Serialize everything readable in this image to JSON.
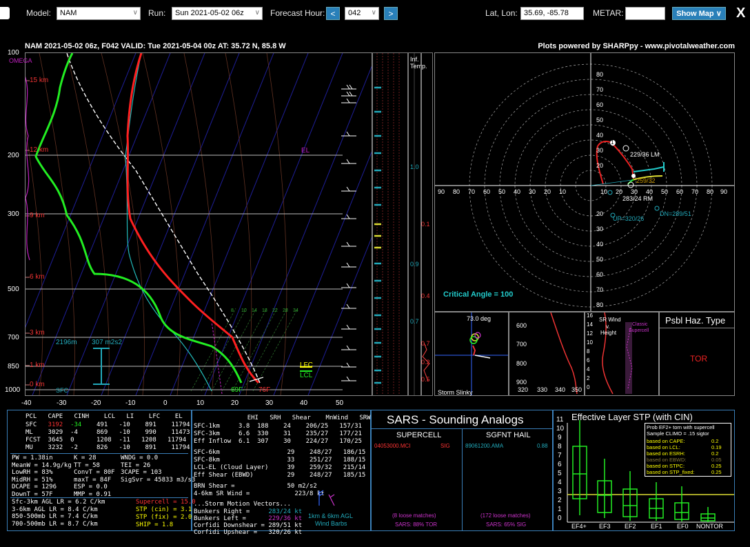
{
  "topbar": {
    "model_label": "Model:",
    "model_value": "NAM",
    "run_label": "Run:",
    "run_value": "Sun 2021-05-02 06z",
    "fhour_label": "Forecast Hour:",
    "fhour_value": "042",
    "prev": "<",
    "next": ">",
    "latlon_label": "Lat, Lon:",
    "latlon_value": "35.69, -85.78",
    "metar_label": "METAR:",
    "metar_value": "",
    "showmap": "Show Map ∨",
    "close": "X"
  },
  "header": {
    "title": "NAM 2021-05-02 06z, F042   VALID: Tue 2021-05-04 00z   AT: 35.72 N, 85.8 W",
    "credit": "Plots powered by SHARPpy - www.pivotalweather.com"
  },
  "skewt": {
    "pressure_ticks": [
      "100",
      "200",
      "300",
      "500",
      "700",
      "850",
      "1000"
    ],
    "temp_ticks": [
      "-40",
      "-30",
      "-20",
      "-10",
      "0",
      "10",
      "20",
      "30",
      "40",
      "50"
    ],
    "height_labels": [
      "15 km",
      "12 km",
      "9 km",
      "6 km",
      "3 km",
      "1 km",
      "0 km"
    ],
    "omega": "OMEGA",
    "el": "EL",
    "lfc": "LFC",
    "lcl": "LCL",
    "sfc": "SFC",
    "sfc_t": "76F",
    "sfc_td": "69F",
    "eff_inflow_depth": "2196m",
    "eff_inflow_srh": "307 m2s2",
    "mixing_ratio_labels": [
      "8",
      "10",
      "14",
      "18",
      "22",
      "28",
      "34"
    ]
  },
  "theta": {
    "title_a": "Inf.",
    "title_b": "Temp.",
    "ticks": [
      "1.0",
      "0.1",
      "0.9",
      "0.4",
      "0.7",
      "0.7",
      "0.2",
      "0.5"
    ]
  },
  "hodo": {
    "rings": [
      "10",
      "20",
      "30",
      "40",
      "50",
      "60",
      "70",
      "80"
    ],
    "xticks": [
      "90",
      "80",
      "70",
      "60",
      "50",
      "40",
      "30",
      "20",
      "10"
    ],
    "lm": "229/36 LM",
    "rm": "283/24 RM",
    "up": "UP=320/26",
    "dn": "DN=289/51",
    "mean": "259/32",
    "critical": "Critical Angle = 100",
    "mark1": "1"
  },
  "slinky": {
    "deg": "73.0 deg",
    "label": "Storm Slinky"
  },
  "small_profile": {
    "yticks": [
      "600",
      "700",
      "800",
      "900"
    ],
    "xticks": [
      "320",
      "330",
      "340",
      "350"
    ]
  },
  "srwind": {
    "label_a": "SR Wind",
    "label_b": "v.",
    "label_c": "Height",
    "classic_a": "Classic",
    "classic_b": "Supercell",
    "yticks": [
      "16",
      "14",
      "12",
      "10",
      "8",
      "6",
      "4",
      "2",
      "0"
    ]
  },
  "hazard": {
    "title": "Psbl Haz. Type",
    "value": "TOR"
  },
  "parcels": {
    "header": [
      "PCL",
      "CAPE",
      "CINH",
      "LCL",
      "LI",
      "LFC",
      "EL"
    ],
    "rows": [
      [
        "SFC",
        "3192",
        "-34",
        "491",
        "-10",
        "891",
        "11794"
      ],
      [
        "ML",
        "3029",
        "-4",
        "869",
        "-10",
        "990",
        "11473"
      ],
      [
        "FCST",
        "3645",
        "0",
        "1208",
        "-11",
        "1208",
        "11794"
      ],
      [
        "MU",
        "3232",
        "-2",
        "826",
        "-10",
        "891",
        "11794"
      ]
    ]
  },
  "indices": {
    "col1": [
      "PW = 1.38in",
      "MeanW = 14.9g/kg",
      "LowRH = 83%",
      "MidRH = 51%",
      "DCAPE = 1296",
      "DownT = 57F"
    ],
    "col2": [
      "K = 28",
      "TT = 58",
      "ConvT = 80F",
      "maxT = 84F",
      "ESP = 0.0",
      "MMP = 0.91"
    ],
    "col3": [
      "WNDG = 0.0",
      "TEI = 26",
      "3CAPE = 103",
      "",
      "",
      "SigSvr = 45833 m3/s3"
    ]
  },
  "lapse": [
    "Sfc-3km AGL LR = 6.2 C/km",
    "3-6km AGL LR = 8.4 C/km",
    "850-500mb LR = 7.4 C/km",
    "700-500mb LR = 8.7 C/km"
  ],
  "composites": [
    "Supercell = 15.0",
    "STP (cin) = 3.1",
    "STP (fix) = 2.0",
    "SHIP = 1.8"
  ],
  "kinematics": {
    "header": [
      "",
      "EHI",
      "SRH",
      "Shear",
      "MnWind",
      "SRW"
    ],
    "rows": [
      [
        "SFC-1km",
        "3.8",
        "188",
        "24",
        "206/25",
        "157/31"
      ],
      [
        "SFC-3km",
        "6.6",
        "330",
        "31",
        "235/27",
        "177/21"
      ],
      [
        "Eff Inflow",
        "6.1",
        "307",
        "30",
        "224/27",
        "170/25"
      ],
      [
        "SFC-6km",
        "",
        "",
        "29",
        "248/27",
        "186/15"
      ],
      [
        "SFC-8km",
        "",
        "",
        "33",
        "251/27",
        "188/15"
      ],
      [
        "LCL-EL (Cloud Layer)",
        "",
        "",
        "39",
        "259/32",
        "215/14"
      ],
      [
        "Eff Shear (EBWD)",
        "",
        "",
        "29",
        "248/27",
        "185/15"
      ]
    ],
    "brn": "BRN Shear =",
    "brn_v": "50 m2/s2",
    "srw46": "4-6km SR Wind =",
    "srw46_v": "223/8 kt",
    "motion_title": "...Storm Motion Vectors...",
    "motions": [
      [
        "Bunkers Right =",
        "283/24 kt"
      ],
      [
        "Bunkers Left =",
        "229/36 kt"
      ],
      [
        "Corfidi Downshear =",
        "289/51 kt"
      ],
      [
        "Corfidi Upshear =",
        "320/26 kt"
      ]
    ],
    "barbs_a": "1km & 6km AGL",
    "barbs_b": "Wind Barbs"
  },
  "sars": {
    "title": "SARS - Sounding Analogs",
    "sup_head": "SUPERCELL",
    "hail_head": "SGFNT HAIL",
    "sup_match": "04053000.MCI",
    "sup_sig": "SIG",
    "hail_match": "89061200.AMA",
    "hail_val": "0.88",
    "sup_loose": "(8 loose matches)",
    "hail_loose": "(172 loose matches)",
    "sup_pct": "SARS: 88% TOR",
    "hail_pct": "SARS: 65% SIG"
  },
  "stp": {
    "title": "Effective Layer STP (with CIN)",
    "yticks": [
      "11",
      "10",
      "9",
      "8",
      "7",
      "6",
      "5",
      "4",
      "3",
      "2",
      "1",
      "0"
    ],
    "cats": [
      "EF4+",
      "EF3",
      "EF2",
      "EF1",
      "EF0",
      "NONTOR"
    ],
    "box_title_a": "Prob EF2+ torn with supercell",
    "box_title_b": "Sample CLIMO = .15 sigtor",
    "probs": [
      [
        "based on CAPE:",
        "0.2"
      ],
      [
        "based on LCL:",
        "0.19"
      ],
      [
        "based on ESRH:",
        "0.2"
      ],
      [
        "based on EBWD:",
        "0.05"
      ],
      [
        "based on STPC:",
        "0.25"
      ],
      [
        "based on STP_fixed:",
        "0.25"
      ]
    ]
  },
  "colors": {
    "accent": "#2980b9",
    "temp": "#ff2020",
    "dew": "#22ee22",
    "wetbulb": "#22cccc",
    "parcel": "#ffffff",
    "grid": "#2a2aa0"
  }
}
